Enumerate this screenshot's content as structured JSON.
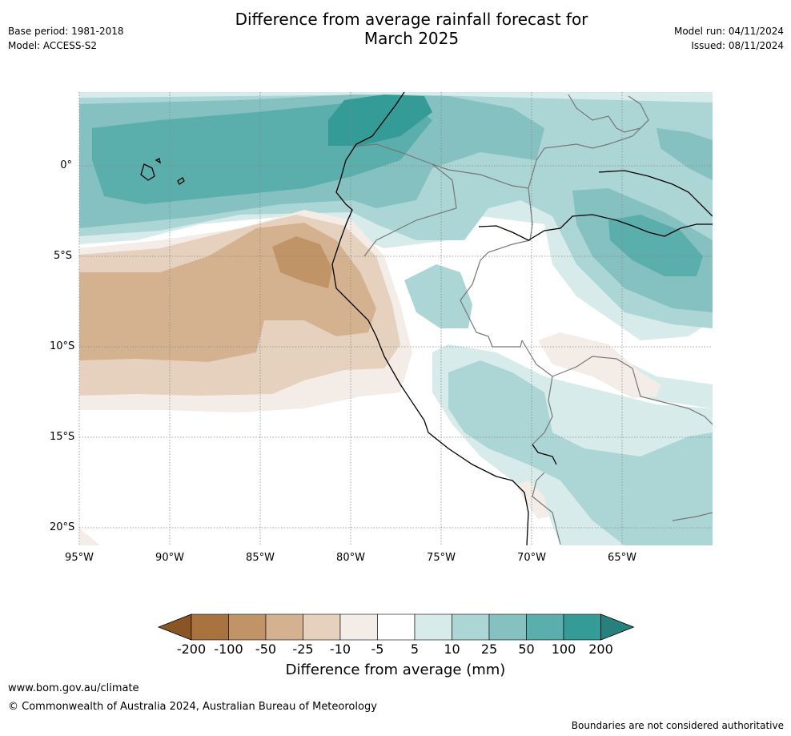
{
  "header": {
    "title_line1": "Difference from average rainfall forecast for",
    "title_line2": "March 2025",
    "base_period": "Base period: 1981-2018",
    "model": "Model: ACCESS-S2",
    "model_run": "Model run: 04/11/2024",
    "issued": "Issued: 08/11/2024"
  },
  "map": {
    "lat_ticks": [
      "0°",
      "5°S",
      "10°S",
      "15°S",
      "20°S"
    ],
    "lon_ticks": [
      "95°W",
      "90°W",
      "85°W",
      "80°W",
      "75°W",
      "70°W",
      "65°W"
    ]
  },
  "colorbar": {
    "labels": [
      "-200",
      "-100",
      "-50",
      "-25",
      "-10",
      "-5",
      "5",
      "10",
      "25",
      "50",
      "100",
      "200"
    ],
    "colors": [
      "#8a5525",
      "#a8733f",
      "#c19468",
      "#d4b290",
      "#e5d1be",
      "#f4ece6",
      "#ffffff",
      "#d6ebea",
      "#acd6d5",
      "#84c1c0",
      "#5aaeac",
      "#349b97",
      "#26807c"
    ],
    "title": "Difference from average (mm)"
  },
  "footer": {
    "url": "www.bom.gov.au/climate",
    "copyright": "© Commonwealth of Australia 2024, Australian Bureau of Meteorology",
    "disclaimer": "Boundaries are not considered authoritative"
  }
}
